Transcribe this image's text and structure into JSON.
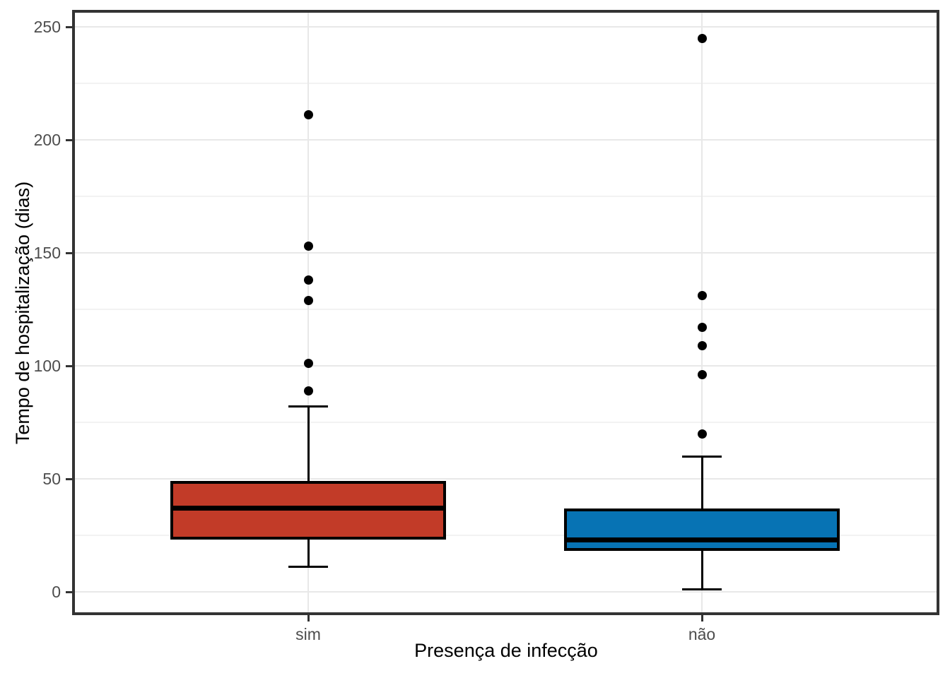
{
  "chart_data": {
    "type": "boxplot",
    "xlabel": "Presença de infecção",
    "ylabel": "Tempo de hospitalização (dias)",
    "ylim": [
      -10,
      253
    ],
    "y_major_ticks": [
      0,
      50,
      100,
      150,
      200,
      250
    ],
    "y_minor_ticks": [
      25,
      75,
      125,
      175,
      225
    ],
    "grid": true,
    "legend": "none",
    "categories": [
      "sim",
      "não"
    ],
    "series": [
      {
        "name": "sim",
        "fill_color": "#C23B28",
        "whisker_min": 11,
        "q1": 23,
        "median": 37,
        "q3": 49,
        "whisker_max": 82,
        "outliers": [
          89,
          101,
          129,
          138,
          153,
          211
        ]
      },
      {
        "name": "não",
        "fill_color": "#0773B4",
        "whisker_min": 1,
        "q1": 18,
        "median": 23,
        "q3": 37,
        "whisker_max": 60,
        "outliers": [
          70,
          96,
          109,
          117,
          131,
          245
        ]
      }
    ],
    "colors": {
      "panel_border": "#333333",
      "grid_major": "#E8E8E8",
      "grid_minor": "#F2F2F2",
      "tick_label": "#4D4D4D",
      "axis_title": "#000000",
      "box_border": "#000000",
      "median": "#000000",
      "outlier": "#000000",
      "background": "#FFFFFF"
    }
  }
}
